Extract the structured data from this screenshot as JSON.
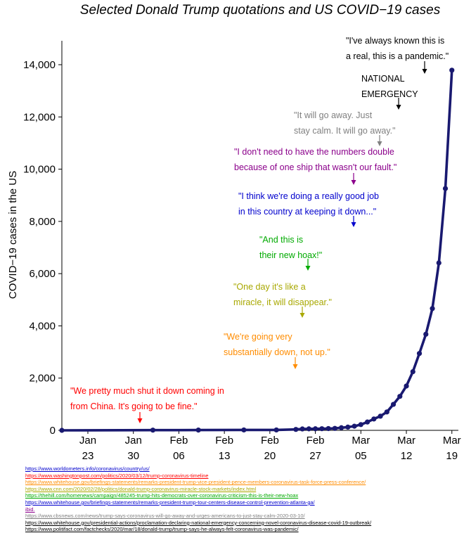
{
  "chart_data": {
    "type": "line",
    "title": "Selected Donald Trump quotations and US COVID−19 cases",
    "ylabel": "COVID−19 cases in the US",
    "xlabel": "",
    "ylim": [
      0,
      14000
    ],
    "xlim": [
      "2020-01-19",
      "2020-03-20"
    ],
    "y_ticks": [
      "0",
      "2,000",
      "4,000",
      "6,000",
      "8,000",
      "10,000",
      "12,000",
      "14,000"
    ],
    "x_ticks": [
      {
        "date": "2020-01-23",
        "month": "Jan",
        "day": "23"
      },
      {
        "date": "2020-01-30",
        "month": "Jan",
        "day": "30"
      },
      {
        "date": "2020-02-06",
        "month": "Feb",
        "day": "06"
      },
      {
        "date": "2020-02-13",
        "month": "Feb",
        "day": "13"
      },
      {
        "date": "2020-02-20",
        "month": "Feb",
        "day": "20"
      },
      {
        "date": "2020-02-27",
        "month": "Feb",
        "day": "27"
      },
      {
        "date": "2020-03-05",
        "month": "Mar",
        "day": "05"
      },
      {
        "date": "2020-03-12",
        "month": "Mar",
        "day": "12"
      },
      {
        "date": "2020-03-19",
        "month": "Mar",
        "day": "19"
      }
    ],
    "grid": false,
    "series": [
      {
        "color": "#191970",
        "points": [
          {
            "x": "2020-01-19",
            "y": 0
          },
          {
            "x": "2020-02-02",
            "y": 8
          },
          {
            "x": "2020-02-09",
            "y": 11
          },
          {
            "x": "2020-02-16",
            "y": 15
          },
          {
            "x": "2020-02-21",
            "y": 15
          },
          {
            "x": "2020-02-24",
            "y": 35
          },
          {
            "x": "2020-02-25",
            "y": 53
          },
          {
            "x": "2020-02-26",
            "y": 57
          },
          {
            "x": "2020-02-27",
            "y": 60
          },
          {
            "x": "2020-02-28",
            "y": 62
          },
          {
            "x": "2020-02-29",
            "y": 68
          },
          {
            "x": "2020-03-01",
            "y": 75
          },
          {
            "x": "2020-03-02",
            "y": 100
          },
          {
            "x": "2020-03-03",
            "y": 124
          },
          {
            "x": "2020-03-04",
            "y": 158
          },
          {
            "x": "2020-03-05",
            "y": 221
          },
          {
            "x": "2020-03-06",
            "y": 319
          },
          {
            "x": "2020-03-07",
            "y": 435
          },
          {
            "x": "2020-03-08",
            "y": 541
          },
          {
            "x": "2020-03-09",
            "y": 704
          },
          {
            "x": "2020-03-10",
            "y": 994
          },
          {
            "x": "2020-03-11",
            "y": 1301
          },
          {
            "x": "2020-03-12",
            "y": 1697
          },
          {
            "x": "2020-03-13",
            "y": 2247
          },
          {
            "x": "2020-03-14",
            "y": 2943
          },
          {
            "x": "2020-03-15",
            "y": 3680
          },
          {
            "x": "2020-03-16",
            "y": 4663
          },
          {
            "x": "2020-03-17",
            "y": 6411
          },
          {
            "x": "2020-03-18",
            "y": 9259
          },
          {
            "x": "2020-03-19",
            "y": 13789
          }
        ]
      }
    ],
    "annotations": [
      {
        "lines": [
          "\"We pretty much shut it down coming in",
          "from China. It's going to be fine.\""
        ],
        "color": "#ff0000",
        "date": "2020-02-01",
        "y": 0
      },
      {
        "lines": [
          "\"We're going very",
          "substantially down, not up.\""
        ],
        "color": "#ff8c00",
        "date": "2020-02-26",
        "y": 0
      },
      {
        "lines": [
          "\"One day it's like a",
          "miracle, it will disappear.\""
        ],
        "color": "#a8a800",
        "date": "2020-02-27",
        "y": 0
      },
      {
        "lines": [
          "\"And this is",
          "their new hoax!\""
        ],
        "color": "#00aa00",
        "date": "2020-02-28",
        "y": 0
      },
      {
        "lines": [
          "\"I think we're doing a really good job",
          "in this country at keeping it down...\""
        ],
        "color": "#0000cd",
        "date": "2020-03-06",
        "y": 0
      },
      {
        "lines": [
          "\"I don't need to have the numbers double",
          "because of one ship that wasn't our fault.\""
        ],
        "color": "#8b008b",
        "date": "2020-03-06",
        "y": 0
      },
      {
        "lines": [
          "\"It will go away. Just",
          "stay calm. It will go away.\""
        ],
        "color": "#808080",
        "date": "2020-03-10",
        "y": 0
      },
      {
        "lines": [
          "NATIONAL",
          "EMERGENCY"
        ],
        "color": "#000000",
        "date": "2020-03-13",
        "y": 0
      },
      {
        "lines": [
          "\"I've always known this is",
          "a real, this is a pandemic.\""
        ],
        "color": "#000000",
        "date": "2020-03-17",
        "y": 0
      }
    ]
  },
  "sources": [
    {
      "text": "https://www.worldometers.info/coronavirus/country/us/",
      "color": "#0000cd"
    },
    {
      "text": "https://www.washingtonpost.com/politics/2020/03/12/trump-coronavirus-timeline",
      "color": "#ff0000"
    },
    {
      "text": "https://www.whitehouse.gov/briefings-statements/remarks-president-trump-vice-president-pence-members-coronavirus-task-force-press-conference/",
      "color": "#ff8c00"
    },
    {
      "text": "https://www.cnn.com/2020/02/28/politics/donald-trump-coronavirus-miracle-stock-markets/index.html",
      "color": "#a8a800"
    },
    {
      "text": "https://thehill.com/homenews/campaign/485245-trump-hits-democrats-over-coronavirus-criticism-this-is-their-new-hoax",
      "color": "#00aa00"
    },
    {
      "text": "https://www.whitehouse.gov/briefings-statements/remarks-president-trump-tour-centers-disease-control-prevention-atlanta-ga/",
      "color": "#0000cd"
    },
    {
      "text": "ibid.",
      "color": "#8b008b"
    },
    {
      "text": "https://www.cbsnews.com/news/trump-says-coronavirus-will-go-away-and-urges-americans-to-just-stay-calm-2020-03-10/",
      "color": "#808080"
    },
    {
      "text": "https://www.whitehouse.gov/presidential-actions/proclamation-declaring-national-emergency-concerning-novel-coronavirus-disease-covid-19-outbreak/",
      "color": "#000000"
    },
    {
      "text": "https://www.politifact.com/factchecks/2020/mar/18/donald-trump/trump-says-he-always-felt-coronavirus-was-pandemic/",
      "color": "#000000"
    }
  ]
}
